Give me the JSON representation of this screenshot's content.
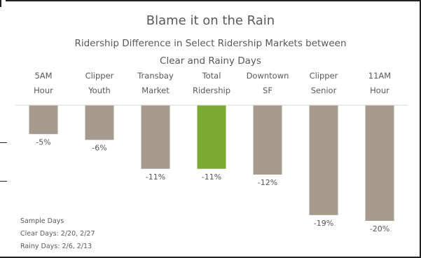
{
  "chart_data": {
    "type": "bar",
    "title": "Blame it on the Rain",
    "subtitle": "Ridership Difference in Select Ridership Markets between Clear and Rainy Days",
    "categories": [
      [
        "5AM",
        "Hour"
      ],
      [
        "Clipper",
        "Youth"
      ],
      [
        "Transbay",
        "Market"
      ],
      [
        "Total",
        "Ridership"
      ],
      [
        "Downtown",
        "SF"
      ],
      [
        "Clipper",
        "Senior"
      ],
      [
        "11AM",
        "Hour"
      ]
    ],
    "values": [
      -5,
      -6,
      -11,
      -11,
      -12,
      -19,
      -20
    ],
    "value_labels": [
      "-5%",
      "-6%",
      "-11%",
      "-11%",
      "-12%",
      "-19%",
      "-20%"
    ],
    "unit": "%",
    "highlight_index": 3,
    "colors": {
      "default": "#A69A8D",
      "highlight": "#7AAB30",
      "baseline": "#D9D9D9"
    },
    "ylim": [
      -20,
      0
    ],
    "category_position": "top"
  },
  "notes": {
    "heading": "Sample Days",
    "clear": "Clear Days: 2/20, 2/27",
    "rainy": "Rainy Days: 2/6, 2/13"
  }
}
